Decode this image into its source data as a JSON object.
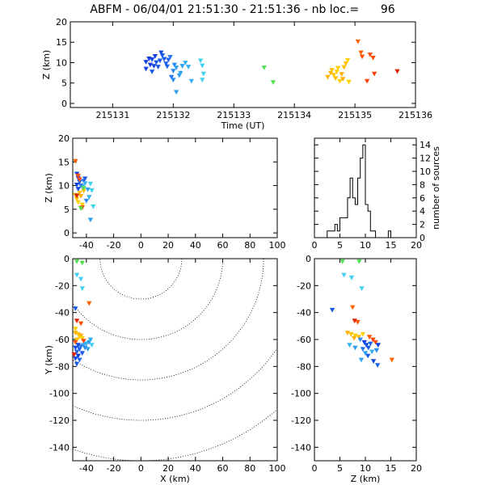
{
  "title": "ABFM - 06/04/01 21:51:30 - 21:51:36 - nb loc.=      96",
  "chart_data": [
    {
      "id": "time_height",
      "type": "scatter",
      "xlabel": "Time (UT)",
      "ylabel": "Z (km)",
      "xlim": [
        215130.3,
        215136
      ],
      "ylim": [
        -1,
        20
      ],
      "xticks": [
        "215131",
        "215132",
        "215133",
        "215134",
        "215135",
        "215136"
      ],
      "yticks": [
        0,
        5,
        10,
        15,
        20
      ],
      "points": [
        {
          "x": 215131.55,
          "y": 10.2,
          "c": "#1040e0"
        },
        {
          "x": 215131.6,
          "y": 11.0,
          "c": "#1040e0"
        },
        {
          "x": 215131.62,
          "y": 9.5,
          "c": "#1040e0"
        },
        {
          "x": 215131.65,
          "y": 10.8,
          "c": "#1448e4"
        },
        {
          "x": 215131.68,
          "y": 9.2,
          "c": "#1448e4"
        },
        {
          "x": 215131.7,
          "y": 11.6,
          "c": "#1040e0"
        },
        {
          "x": 215131.72,
          "y": 10.1,
          "c": "#1a5ae8"
        },
        {
          "x": 215131.75,
          "y": 9.0,
          "c": "#1a5ae8"
        },
        {
          "x": 215131.78,
          "y": 10.5,
          "c": "#1a5ae8"
        },
        {
          "x": 215131.8,
          "y": 12.5,
          "c": "#1448e4"
        },
        {
          "x": 215131.82,
          "y": 11.8,
          "c": "#1a5ae8"
        },
        {
          "x": 215131.85,
          "y": 10.9,
          "c": "#1a5ae8"
        },
        {
          "x": 215131.88,
          "y": 9.8,
          "c": "#2064ee"
        },
        {
          "x": 215131.9,
          "y": 9.1,
          "c": "#2064ee"
        },
        {
          "x": 215131.92,
          "y": 10.7,
          "c": "#2064ee"
        },
        {
          "x": 215131.95,
          "y": 11.4,
          "c": "#2a74f0"
        },
        {
          "x": 215131.55,
          "y": 8.5,
          "c": "#1448e4"
        },
        {
          "x": 215131.65,
          "y": 7.8,
          "c": "#1a5ae8"
        },
        {
          "x": 215131.97,
          "y": 6.5,
          "c": "#2a74f0"
        },
        {
          "x": 215132.0,
          "y": 8.0,
          "c": "#2a8cf0"
        },
        {
          "x": 215132.02,
          "y": 9.5,
          "c": "#2a8cf0"
        },
        {
          "x": 215132.05,
          "y": 8.8,
          "c": "#30a0f0"
        },
        {
          "x": 215132.1,
          "y": 6.9,
          "c": "#30a0f0"
        },
        {
          "x": 215132.12,
          "y": 7.5,
          "c": "#30a0f0"
        },
        {
          "x": 215132.15,
          "y": 9.2,
          "c": "#30a0f0"
        },
        {
          "x": 215132.2,
          "y": 10.0,
          "c": "#38b0f0"
        },
        {
          "x": 215132.25,
          "y": 9.0,
          "c": "#38b0f0"
        },
        {
          "x": 215132.3,
          "y": 5.5,
          "c": "#38b0f0"
        },
        {
          "x": 215132.0,
          "y": 5.8,
          "c": "#2a8cf0"
        },
        {
          "x": 215132.05,
          "y": 2.8,
          "c": "#30a0f0"
        },
        {
          "x": 215132.45,
          "y": 10.5,
          "c": "#40d0f0"
        },
        {
          "x": 215132.48,
          "y": 9.3,
          "c": "#40d0f0"
        },
        {
          "x": 215132.5,
          "y": 7.3,
          "c": "#40d0f0"
        },
        {
          "x": 215132.48,
          "y": 5.8,
          "c": "#40d0f0"
        },
        {
          "x": 215133.5,
          "y": 8.8,
          "c": "#50e050"
        },
        {
          "x": 215133.65,
          "y": 5.2,
          "c": "#50e050"
        },
        {
          "x": 215134.55,
          "y": 6.5,
          "c": "#ffb000"
        },
        {
          "x": 215134.6,
          "y": 7.5,
          "c": "#ffb000"
        },
        {
          "x": 215134.62,
          "y": 8.2,
          "c": "#ffc000"
        },
        {
          "x": 215134.65,
          "y": 7.0,
          "c": "#ffc000"
        },
        {
          "x": 215134.68,
          "y": 6.2,
          "c": "#ffc000"
        },
        {
          "x": 215134.7,
          "y": 7.8,
          "c": "#ffd000"
        },
        {
          "x": 215134.72,
          "y": 8.7,
          "c": "#ffd000"
        },
        {
          "x": 215134.75,
          "y": 5.5,
          "c": "#ffd000"
        },
        {
          "x": 215134.78,
          "y": 7.2,
          "c": "#ffb000"
        },
        {
          "x": 215134.8,
          "y": 6.0,
          "c": "#ffb000"
        },
        {
          "x": 215134.82,
          "y": 8.9,
          "c": "#ffc000"
        },
        {
          "x": 215134.85,
          "y": 9.8,
          "c": "#ffc000"
        },
        {
          "x": 215134.88,
          "y": 10.6,
          "c": "#ffd000"
        },
        {
          "x": 215134.9,
          "y": 5.3,
          "c": "#ffd000"
        },
        {
          "x": 215135.05,
          "y": 15.2,
          "c": "#ff6000"
        },
        {
          "x": 215135.1,
          "y": 12.5,
          "c": "#ff6000"
        },
        {
          "x": 215135.12,
          "y": 11.5,
          "c": "#ff5000"
        },
        {
          "x": 215135.2,
          "y": 5.5,
          "c": "#ff4000"
        },
        {
          "x": 215135.25,
          "y": 12.0,
          "c": "#ff5000"
        },
        {
          "x": 215135.3,
          "y": 11.2,
          "c": "#ff5000"
        },
        {
          "x": 215135.32,
          "y": 7.3,
          "c": "#ff4000"
        },
        {
          "x": 215135.7,
          "y": 7.9,
          "c": "#e02000"
        }
      ]
    },
    {
      "id": "x_height",
      "type": "scatter",
      "xlabel": "",
      "ylabel": "Z (km)",
      "xlim": [
        -50,
        100
      ],
      "ylim": [
        -1,
        20
      ],
      "xticks": [
        -40,
        -20,
        0,
        20,
        40,
        60,
        80,
        100
      ],
      "yticks": [
        0,
        5,
        10,
        15,
        20
      ],
      "points": [
        {
          "x": -48,
          "y": 15.2,
          "c": "#ff6000"
        },
        {
          "x": -47,
          "y": 12.5,
          "c": "#1040e0"
        },
        {
          "x": -46,
          "y": 11.6,
          "c": "#1448e4"
        },
        {
          "x": -45,
          "y": 10.8,
          "c": "#1a5ae8"
        },
        {
          "x": -47,
          "y": 10.2,
          "c": "#1040e0"
        },
        {
          "x": -44,
          "y": 10.0,
          "c": "#2064ee"
        },
        {
          "x": -46,
          "y": 9.3,
          "c": "#1448e4"
        },
        {
          "x": -42,
          "y": 11.0,
          "c": "#2a74f0"
        },
        {
          "x": -43,
          "y": 9.8,
          "c": "#30a0f0"
        },
        {
          "x": -41,
          "y": 10.5,
          "c": "#38b0f0"
        },
        {
          "x": -39,
          "y": 9.2,
          "c": "#30a0f0"
        },
        {
          "x": -37,
          "y": 10.4,
          "c": "#40d0f0"
        },
        {
          "x": -36,
          "y": 9.0,
          "c": "#40d0f0"
        },
        {
          "x": -38,
          "y": 7.6,
          "c": "#38b0f0"
        },
        {
          "x": -40,
          "y": 6.8,
          "c": "#2a8cf0"
        },
        {
          "x": -35,
          "y": 5.6,
          "c": "#40d0f0"
        },
        {
          "x": -37,
          "y": 2.8,
          "c": "#30a0f0"
        },
        {
          "x": -48,
          "y": 8.0,
          "c": "#ffb000"
        },
        {
          "x": -47,
          "y": 7.2,
          "c": "#ffc000"
        },
        {
          "x": -46,
          "y": 6.5,
          "c": "#ffd000"
        },
        {
          "x": -45,
          "y": 8.5,
          "c": "#ffc000"
        },
        {
          "x": -44,
          "y": 7.8,
          "c": "#ffb000"
        },
        {
          "x": -43,
          "y": 6.0,
          "c": "#ffd000"
        },
        {
          "x": -42,
          "y": 8.9,
          "c": "#ffc000"
        },
        {
          "x": -44,
          "y": 5.3,
          "c": "#ffd000"
        },
        {
          "x": -46,
          "y": 12.1,
          "c": "#ff5000"
        },
        {
          "x": -45,
          "y": 11.3,
          "c": "#ff5000"
        },
        {
          "x": -47,
          "y": 7.9,
          "c": "#e02000"
        },
        {
          "x": -43,
          "y": 5.4,
          "c": "#ff4000"
        },
        {
          "x": -41,
          "y": 11.5,
          "c": "#1a5ae8"
        },
        {
          "x": -42,
          "y": 9.5,
          "c": "#50e050"
        },
        {
          "x": -44,
          "y": 5.2,
          "c": "#50e050"
        }
      ]
    },
    {
      "id": "height_histogram",
      "type": "histogram",
      "xlabel": "",
      "ylabel": "number of sources",
      "xlim": [
        0,
        20
      ],
      "ylim": [
        0,
        15
      ],
      "xticks": [
        0,
        5,
        10,
        15,
        20
      ],
      "yticks": [
        0,
        2,
        4,
        6,
        8,
        10,
        12,
        14
      ],
      "bin_width": 0.5,
      "bin_start": 0,
      "counts": [
        0,
        0,
        0,
        0,
        0,
        1,
        1,
        1,
        2,
        1,
        3,
        3,
        3,
        6,
        9,
        6,
        5,
        9,
        12,
        14,
        5,
        4,
        1,
        1,
        0,
        0,
        0,
        0,
        0,
        1,
        0,
        0,
        0,
        0,
        0,
        0,
        0,
        0,
        0,
        0
      ]
    },
    {
      "id": "plan_view",
      "type": "scatter",
      "xlabel": "X (km)",
      "ylabel": "Y (km)",
      "xlim": [
        -50,
        100
      ],
      "ylim": [
        -150,
        0
      ],
      "xticks": [
        -40,
        -20,
        0,
        20,
        40,
        60,
        80,
        100
      ],
      "yticks": [
        0,
        -20,
        -40,
        -60,
        -80,
        -100,
        -120,
        -140
      ],
      "range_rings_km": [
        30,
        60,
        90,
        120,
        150
      ],
      "points": [
        {
          "x": -47,
          "y": -2,
          "c": "#50e050"
        },
        {
          "x": -43,
          "y": -3,
          "c": "#50e050"
        },
        {
          "x": -47,
          "y": -12,
          "c": "#40d0f0"
        },
        {
          "x": -44,
          "y": -15,
          "c": "#40d0f0"
        },
        {
          "x": -43,
          "y": -22,
          "c": "#40d0f0"
        },
        {
          "x": -38,
          "y": -33,
          "c": "#ff6000"
        },
        {
          "x": -48,
          "y": -37,
          "c": "#1a5ae8"
        },
        {
          "x": -47,
          "y": -46,
          "c": "#e02000"
        },
        {
          "x": -44,
          "y": -48,
          "c": "#ff5000"
        },
        {
          "x": -48,
          "y": -55,
          "c": "#ffb000"
        },
        {
          "x": -46,
          "y": -56,
          "c": "#ffc000"
        },
        {
          "x": -45,
          "y": -58,
          "c": "#ffd000"
        },
        {
          "x": -47,
          "y": -60,
          "c": "#ffc000"
        },
        {
          "x": -44,
          "y": -57,
          "c": "#ffb000"
        },
        {
          "x": -43,
          "y": -59,
          "c": "#ffd000"
        },
        {
          "x": -48,
          "y": -62,
          "c": "#ff5000"
        },
        {
          "x": -42,
          "y": -61,
          "c": "#ff4000"
        },
        {
          "x": -46,
          "y": -64,
          "c": "#1040e0"
        },
        {
          "x": -48,
          "y": -66,
          "c": "#1448e4"
        },
        {
          "x": -45,
          "y": -67,
          "c": "#1a5ae8"
        },
        {
          "x": -47,
          "y": -69,
          "c": "#2064ee"
        },
        {
          "x": -44,
          "y": -65,
          "c": "#2a74f0"
        },
        {
          "x": -42,
          "y": -64,
          "c": "#30a0f0"
        },
        {
          "x": -40,
          "y": -63,
          "c": "#38b0f0"
        },
        {
          "x": -38,
          "y": -62,
          "c": "#30a0f0"
        },
        {
          "x": -41,
          "y": -66,
          "c": "#2a8cf0"
        },
        {
          "x": -43,
          "y": -70,
          "c": "#1a5ae8"
        },
        {
          "x": -46,
          "y": -72,
          "c": "#1040e0"
        },
        {
          "x": -48,
          "y": -74,
          "c": "#1448e4"
        },
        {
          "x": -45,
          "y": -75,
          "c": "#2064ee"
        },
        {
          "x": -47,
          "y": -78,
          "c": "#1a5ae8"
        },
        {
          "x": -37,
          "y": -60,
          "c": "#38b0f0"
        },
        {
          "x": -39,
          "y": -67,
          "c": "#30a0f0"
        },
        {
          "x": -49,
          "y": -71,
          "c": "#e02000"
        },
        {
          "x": -48,
          "y": -52,
          "c": "#ffd000"
        },
        {
          "x": -36,
          "y": -64,
          "c": "#40d0f0"
        }
      ]
    },
    {
      "id": "z_y_view",
      "type": "scatter",
      "xlabel": "Z (km)",
      "ylabel": "",
      "xlim": [
        0,
        20
      ],
      "ylim": [
        -150,
        0
      ],
      "xticks": [
        0,
        5,
        10,
        15,
        20
      ],
      "yticks": [
        0,
        -20,
        -40,
        -60,
        -80,
        -100,
        -120,
        -140
      ],
      "points": [
        {
          "x": 5.5,
          "y": -2,
          "c": "#50e050"
        },
        {
          "x": 8.8,
          "y": -2,
          "c": "#50e050"
        },
        {
          "x": 5.8,
          "y": -12,
          "c": "#40d0f0"
        },
        {
          "x": 7.3,
          "y": -14,
          "c": "#40d0f0"
        },
        {
          "x": 9.3,
          "y": -22,
          "c": "#40d0f0"
        },
        {
          "x": 7.5,
          "y": -36,
          "c": "#ff6000"
        },
        {
          "x": 3.5,
          "y": -38,
          "c": "#1a5ae8"
        },
        {
          "x": 7.9,
          "y": -46,
          "c": "#e02000"
        },
        {
          "x": 8.5,
          "y": -47,
          "c": "#ff5000"
        },
        {
          "x": 6.5,
          "y": -55,
          "c": "#ffb000"
        },
        {
          "x": 7.2,
          "y": -56,
          "c": "#ffc000"
        },
        {
          "x": 8.0,
          "y": -57,
          "c": "#ffd000"
        },
        {
          "x": 8.7,
          "y": -58,
          "c": "#ffc000"
        },
        {
          "x": 7.8,
          "y": -59,
          "c": "#ffb000"
        },
        {
          "x": 9.5,
          "y": -56,
          "c": "#ffd000"
        },
        {
          "x": 10.8,
          "y": -58,
          "c": "#ff5000"
        },
        {
          "x": 11.5,
          "y": -60,
          "c": "#ff4000"
        },
        {
          "x": 12.0,
          "y": -62,
          "c": "#ff5000"
        },
        {
          "x": 9.0,
          "y": -60,
          "c": "#2a8cf0"
        },
        {
          "x": 9.8,
          "y": -62,
          "c": "#1040e0"
        },
        {
          "x": 10.2,
          "y": -64,
          "c": "#1448e4"
        },
        {
          "x": 10.6,
          "y": -66,
          "c": "#1a5ae8"
        },
        {
          "x": 11.0,
          "y": -63,
          "c": "#2064ee"
        },
        {
          "x": 9.5,
          "y": -67,
          "c": "#2a74f0"
        },
        {
          "x": 10.0,
          "y": -70,
          "c": "#30a0f0"
        },
        {
          "x": 11.3,
          "y": -69,
          "c": "#38b0f0"
        },
        {
          "x": 8.0,
          "y": -66,
          "c": "#30a0f0"
        },
        {
          "x": 6.9,
          "y": -64,
          "c": "#38b0f0"
        },
        {
          "x": 12.2,
          "y": -68,
          "c": "#2a8cf0"
        },
        {
          "x": 10.5,
          "y": -72,
          "c": "#1a5ae8"
        },
        {
          "x": 11.6,
          "y": -76,
          "c": "#1448e4"
        },
        {
          "x": 12.4,
          "y": -79,
          "c": "#2064ee"
        },
        {
          "x": 15.2,
          "y": -75,
          "c": "#ff6000"
        },
        {
          "x": 12.5,
          "y": -64,
          "c": "#1040e0"
        },
        {
          "x": 9.2,
          "y": -75,
          "c": "#30a0f0"
        }
      ]
    }
  ]
}
